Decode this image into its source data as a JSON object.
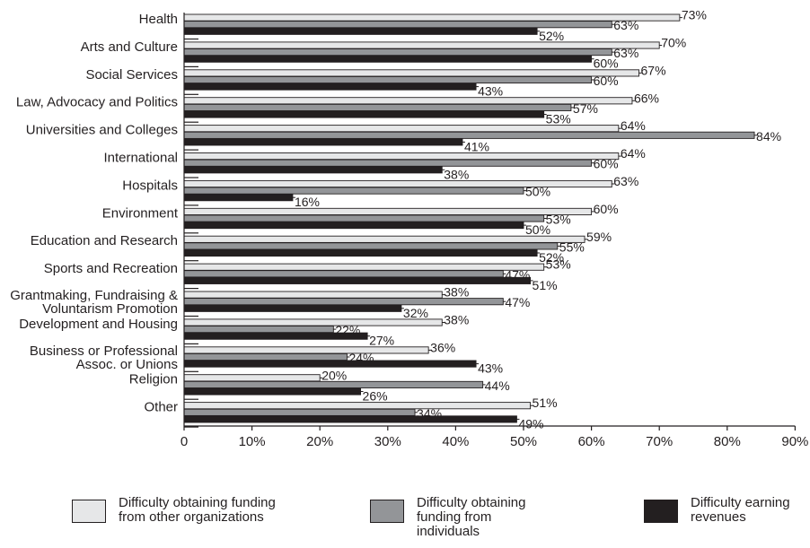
{
  "chart_data": {
    "type": "bar",
    "orientation": "horizontal",
    "categories": [
      "Health",
      "Arts and Culture",
      "Social Services",
      "Law, Advocacy and Politics",
      "Universities and Colleges",
      "International",
      "Hospitals",
      "Environment",
      "Education and Research",
      "Sports and Recreation",
      "Grantmaking, Fundraising & Voluntarism Promotion",
      "Development and Housing",
      "Business or Professional Assoc. or Unions",
      "Religion",
      "Other"
    ],
    "series": [
      {
        "name": "Difficulty obtaining funding from other organizations",
        "color": "#e6e7e8",
        "values": [
          73,
          70,
          67,
          66,
          64,
          64,
          63,
          60,
          59,
          53,
          38,
          38,
          36,
          20,
          51
        ],
        "labels": [
          "73%",
          "70%",
          "67%",
          "66%",
          "64%",
          "64%",
          "63%",
          "60%",
          "59%",
          "53%",
          "38%",
          "38%",
          "36%",
          "20%",
          "51%"
        ]
      },
      {
        "name": "Difficulty obtaining funding from individuals",
        "color": "#939598",
        "values": [
          63,
          63,
          60,
          57,
          84,
          60,
          50,
          53,
          55,
          47,
          47,
          22,
          24,
          44,
          34
        ],
        "labels": [
          "63%",
          "63%",
          "60%",
          "57%",
          "84%",
          "60%",
          "50%",
          "53%",
          "55%",
          "47%",
          "47%",
          "22%",
          "24%",
          "44%",
          "34%"
        ]
      },
      {
        "name": "Difficulty earning revenues",
        "color": "#231f20",
        "values": [
          52,
          60,
          43,
          53,
          41,
          38,
          16,
          50,
          52,
          51,
          32,
          27,
          43,
          26,
          49
        ],
        "labels": [
          "52%",
          "60%",
          "43%",
          "53%",
          "41%",
          "38%",
          "16%",
          "50%",
          "52%",
          "51%",
          "32%",
          "27%",
          "43%",
          "26%",
          "49%"
        ]
      }
    ],
    "x_ticks": [
      "0",
      "10%",
      "20%",
      "30%",
      "40%",
      "50%",
      "60%",
      "70%",
      "80%",
      "90%"
    ],
    "xlim": [
      0,
      90
    ],
    "grid": false,
    "legend_position": "bottom",
    "title": "",
    "xlabel": "",
    "ylabel": ""
  },
  "legend": {
    "items": [
      {
        "text": "Difficulty obtaining funding from other organizations",
        "color": "#e6e7e8"
      },
      {
        "text": "Difficulty obtaining funding from individuals",
        "color": "#939598"
      },
      {
        "text": "Difficulty earning revenues",
        "color": "#231f20"
      }
    ]
  }
}
